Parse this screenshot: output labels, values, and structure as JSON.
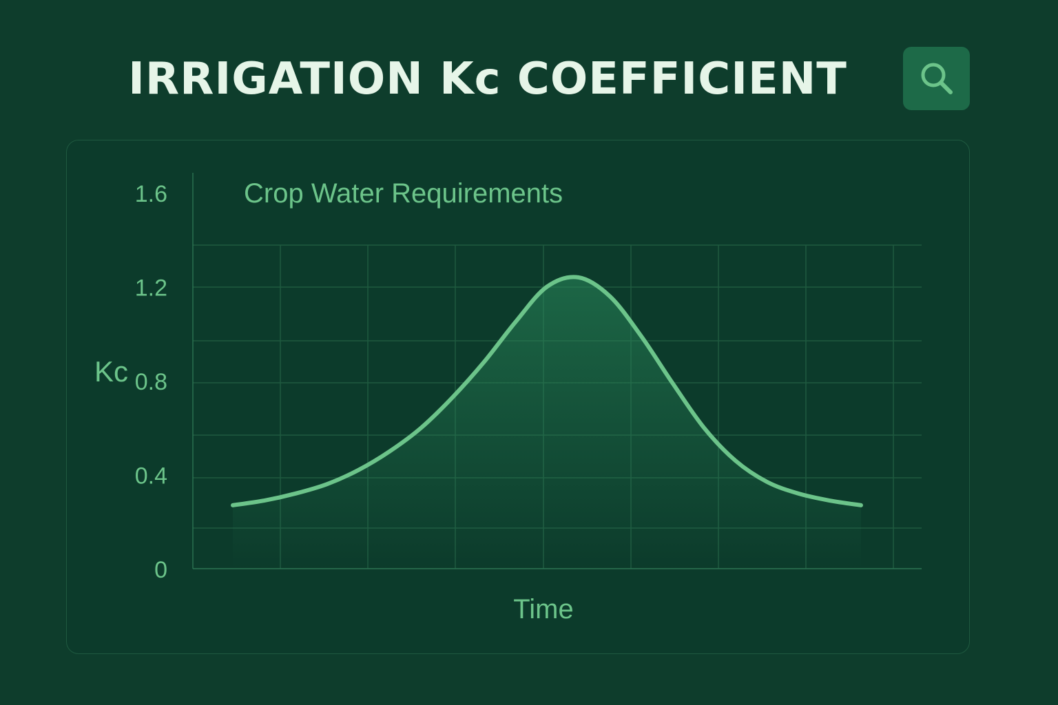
{
  "header": {
    "title": "IRRIGATION Kc COEFFICIENT",
    "search_icon": "search-icon"
  },
  "colors": {
    "background": "#0e3d2c",
    "card": "#0c3b2b",
    "accent": "#6cc48a",
    "grid": "#1f5a40",
    "title": "#e6f5e8",
    "button": "#1d6a48"
  },
  "chart_data": {
    "type": "area",
    "title": "Crop Water Requirements",
    "xlabel": "Time",
    "ylabel": "Kc",
    "yticks": [
      "0",
      "0.4",
      "0.8",
      "1.2",
      "1.6"
    ],
    "ylim": [
      0,
      1.6
    ],
    "grid": true,
    "series": [
      {
        "x": [
          0,
          1,
          2,
          3,
          4,
          5,
          6,
          7,
          8,
          9,
          10,
          11,
          12,
          13,
          14,
          15,
          16,
          17,
          18,
          19,
          20
        ],
        "values": [
          0.27,
          0.29,
          0.32,
          0.36,
          0.42,
          0.5,
          0.6,
          0.73,
          0.88,
          1.05,
          1.2,
          1.24,
          1.16,
          0.99,
          0.79,
          0.6,
          0.46,
          0.37,
          0.32,
          0.29,
          0.27
        ]
      }
    ]
  }
}
